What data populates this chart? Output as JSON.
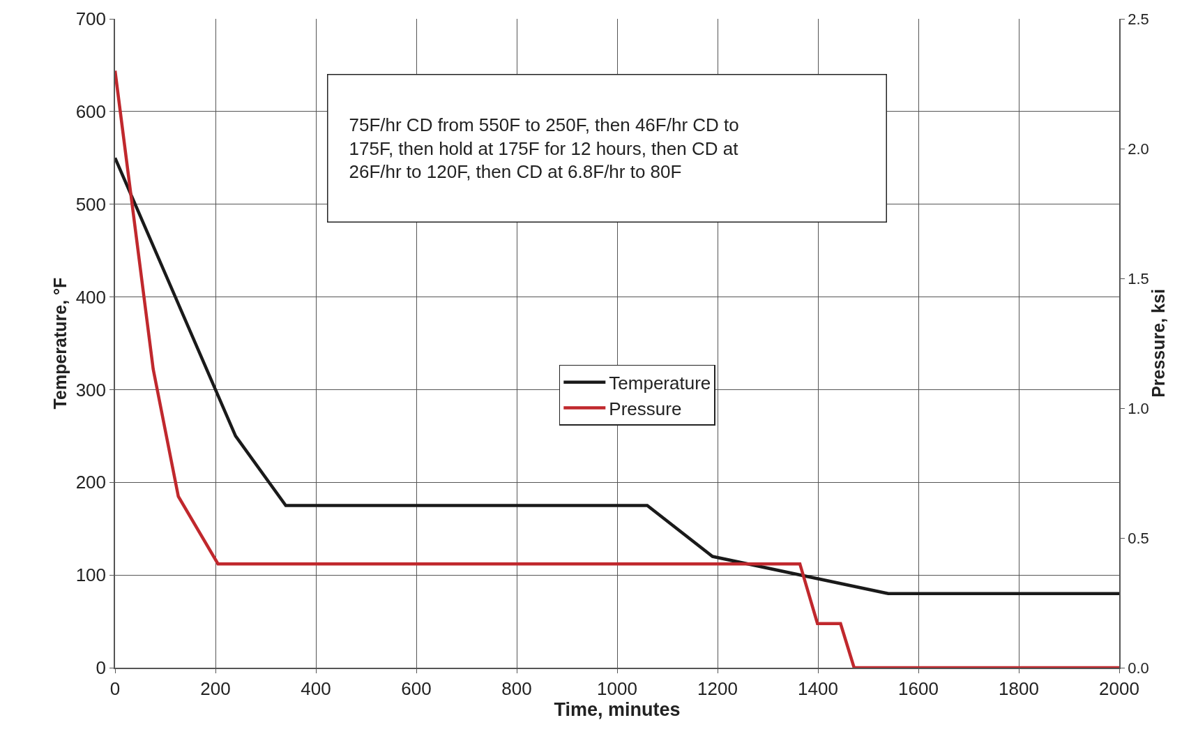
{
  "chart_data": {
    "type": "line",
    "xlabel": "Time, minutes",
    "ylabel": "Temperature, °F",
    "y2label": "Pressure, ksi",
    "annotations": [
      "75F/hr CD from 550F to 250F, then 46F/hr CD to 175F, then hold at 175F for 12 hours, then CD at 26F/hr to 120F, then CD at 6.8F/hr to 80F"
    ],
    "series": [
      {
        "name": "Temperature",
        "color": "#1a1a1a",
        "x": [
          0,
          240,
          340,
          1060,
          1190,
          1540,
          2000
        ],
        "values": [
          550,
          250,
          175,
          175,
          120,
          80,
          80
        ]
      },
      {
        "name": "Pressure",
        "color": "#c0282d",
        "axis": "y2",
        "x": [
          0,
          76,
          126,
          205,
          1364,
          1399,
          1445,
          1472,
          2000
        ],
        "values": [
          2.3,
          1.15,
          0.66,
          0.4,
          0.4,
          0.17,
          0.17,
          0,
          0
        ]
      }
    ],
    "xlim": [
      0,
      2000
    ],
    "xticks": [
      0,
      200,
      400,
      600,
      800,
      1000,
      1200,
      1400,
      1600,
      1800,
      2000
    ],
    "ylim": [
      0,
      700
    ],
    "yticks": [
      0,
      100,
      200,
      300,
      400,
      500,
      600,
      700
    ],
    "y2lim": [
      0,
      2.5
    ],
    "y2ticks": [
      {
        "value": 0,
        "label": "0.0"
      },
      {
        "value": 0.5,
        "label": "0.5"
      },
      {
        "value": 1,
        "label": "1.0"
      },
      {
        "value": 1.5,
        "label": "1.5"
      },
      {
        "value": 2,
        "label": "2.0"
      },
      {
        "value": 2.5,
        "label": "2.5"
      }
    ],
    "grid": true,
    "legend": "center",
    "marker": "none",
    "line_style": "solid"
  }
}
